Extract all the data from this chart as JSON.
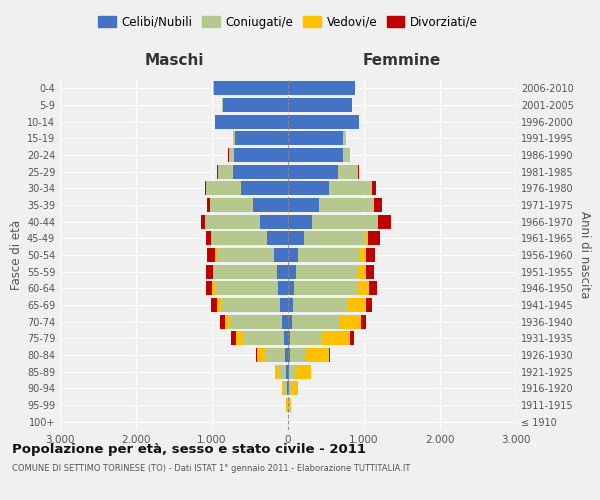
{
  "age_groups": [
    "100+",
    "95-99",
    "90-94",
    "85-89",
    "80-84",
    "75-79",
    "70-74",
    "65-69",
    "60-64",
    "55-59",
    "50-54",
    "45-49",
    "40-44",
    "35-39",
    "30-34",
    "25-29",
    "20-24",
    "15-19",
    "10-14",
    "5-9",
    "0-4"
  ],
  "birth_years": [
    "≤ 1910",
    "1911-1915",
    "1916-1920",
    "1921-1925",
    "1926-1930",
    "1931-1935",
    "1936-1940",
    "1941-1945",
    "1946-1950",
    "1951-1955",
    "1956-1960",
    "1961-1965",
    "1966-1970",
    "1971-1975",
    "1976-1980",
    "1981-1985",
    "1986-1990",
    "1991-1995",
    "1996-2000",
    "2001-2005",
    "2006-2010"
  ],
  "maschi": {
    "celibi": [
      2,
      5,
      18,
      20,
      35,
      55,
      80,
      100,
      130,
      150,
      180,
      280,
      370,
      460,
      620,
      720,
      710,
      700,
      960,
      860,
      980
    ],
    "coniugati": [
      2,
      12,
      40,
      90,
      260,
      520,
      680,
      780,
      830,
      820,
      760,
      720,
      710,
      560,
      460,
      200,
      65,
      18,
      5,
      5,
      5
    ],
    "vedovi": [
      1,
      5,
      18,
      55,
      110,
      110,
      65,
      55,
      35,
      22,
      18,
      12,
      8,
      5,
      5,
      5,
      5,
      5,
      0,
      0,
      0
    ],
    "divorziati": [
      0,
      0,
      0,
      5,
      10,
      65,
      75,
      75,
      85,
      85,
      110,
      65,
      55,
      35,
      12,
      5,
      5,
      0,
      0,
      0,
      0
    ]
  },
  "femmine": {
    "nubili": [
      2,
      5,
      12,
      18,
      22,
      32,
      52,
      72,
      85,
      105,
      135,
      210,
      310,
      410,
      540,
      660,
      730,
      730,
      930,
      840,
      880
    ],
    "coniugate": [
      2,
      12,
      32,
      75,
      210,
      420,
      620,
      720,
      820,
      820,
      810,
      810,
      860,
      710,
      560,
      255,
      82,
      22,
      5,
      5,
      5
    ],
    "vedove": [
      2,
      18,
      85,
      210,
      310,
      360,
      290,
      230,
      155,
      105,
      75,
      32,
      18,
      12,
      5,
      5,
      5,
      5,
      0,
      0,
      0
    ],
    "divorziate": [
      0,
      0,
      0,
      5,
      12,
      55,
      65,
      85,
      105,
      105,
      125,
      155,
      165,
      105,
      55,
      18,
      5,
      5,
      0,
      0,
      0
    ]
  },
  "colors": {
    "celibe": "#4472c4",
    "coniugato": "#b5c98e",
    "vedovo": "#ffc000",
    "divorziato": "#c00000"
  },
  "legend_labels": [
    "Celibi/Nubili",
    "Coniugati/e",
    "Vedovi/e",
    "Divorziati/e"
  ],
  "title": "Popolazione per età, sesso e stato civile - 2011",
  "subtitle": "COMUNE DI SETTIMO TORINESE (TO) - Dati ISTAT 1° gennaio 2011 - Elaborazione TUTTITALIA.IT",
  "header_left": "Maschi",
  "header_right": "Femmine",
  "ylabel_left": "Fasce di età",
  "ylabel_right": "Anni di nascita",
  "xlim": 3000,
  "xtick_vals": [
    -3000,
    -2000,
    -1000,
    0,
    1000,
    2000,
    3000
  ],
  "xtick_labels": [
    "3.000",
    "2.000",
    "1.000",
    "0",
    "1.000",
    "2.000",
    "3.000"
  ],
  "background_color": "#f0f0f0"
}
